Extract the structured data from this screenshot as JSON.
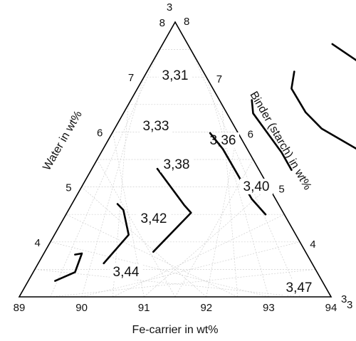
{
  "chart_data": {
    "type": "ternary-contour",
    "grid": true,
    "axes": {
      "bottom": {
        "label": "Fe-carrier in wt%",
        "min": 89,
        "max": 94,
        "ticks": [
          "89",
          "90",
          "91",
          "92",
          "93",
          "94"
        ]
      },
      "left": {
        "label": "Water in wt%",
        "min": 3,
        "max": 8,
        "ticks": [
          "3",
          "4",
          "5",
          "6",
          "7",
          "8"
        ]
      },
      "right": {
        "label": "Binder (starch) in wt%",
        "min": 3,
        "max": 8,
        "ticks": [
          "8",
          "7",
          "6",
          "5",
          "4",
          "3"
        ]
      }
    },
    "contours": [
      {
        "label": "3,31",
        "value": 3.31,
        "points": [
          [
            89.51,
            3.77
          ],
          [
            89.61,
            3.79
          ],
          [
            89.67,
            3.45
          ],
          [
            89.43,
            3.29
          ]
        ]
      },
      {
        "label": "3,33",
        "value": 3.33,
        "points": [
          [
            89.73,
            4.69
          ],
          [
            89.88,
            4.58
          ],
          [
            90.19,
            4.13
          ],
          [
            90.05,
            3.61
          ]
        ]
      },
      {
        "label": "3,36",
        "value": 3.36,
        "points": [
          [
            90.05,
            5.33
          ],
          [
            90.81,
            4.67
          ],
          [
            90.99,
            4.53
          ],
          [
            90.74,
            3.82
          ]
        ]
      },
      {
        "label": "3,38",
        "value": 3.38,
        "points": [
          [
            90.57,
            5.98
          ],
          [
            90.92,
            5.69
          ],
          [
            91.84,
            4.78
          ],
          [
            92.2,
            4.5
          ]
        ]
      },
      {
        "label": "3,40",
        "value": 3.4,
        "points": [
          [
            90.94,
            6.58
          ],
          [
            91.08,
            6.34
          ],
          [
            91.89,
            5.63
          ],
          [
            92.21,
            5.31
          ]
        ]
      },
      {
        "label": "3,42",
        "value": 3.42,
        "points": [
          [
            91.36,
            7.1
          ],
          [
            91.47,
            6.79
          ],
          [
            91.91,
            6.36
          ],
          [
            92.32,
            6.06
          ],
          [
            93.11,
            5.67
          ],
          [
            93.45,
            5.41
          ]
        ]
      },
      {
        "label": "3,44",
        "value": 3.44,
        "points": [
          [
            91.72,
            7.6
          ],
          [
            92.71,
            7.05
          ],
          [
            92.95,
            6.95
          ],
          [
            93.88,
            6.46
          ],
          [
            94.06,
            6.28
          ]
        ]
      },
      {
        "label": "3,47",
        "value": 3.47,
        "points": [
          [
            92.29,
            7.92
          ],
          [
            92.95,
            7.58
          ],
          [
            93.41,
            7.43
          ],
          [
            94.06,
            7.17
          ],
          [
            94.3,
            6.99
          ],
          [
            94.74,
            6.59
          ],
          [
            94.89,
            6.41
          ]
        ]
      }
    ]
  }
}
